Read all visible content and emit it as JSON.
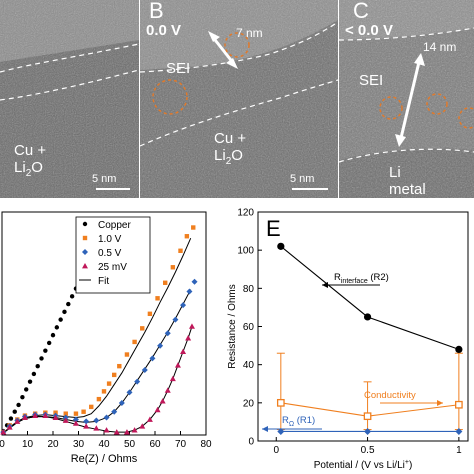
{
  "panels": {
    "a": {
      "labels": [
        "Cu +",
        "Li",
        "2",
        "O"
      ],
      "scale_bar": "5 nm"
    },
    "b": {
      "letter": "B",
      "voltage": "0.0 V",
      "thickness": "7 nm",
      "sei_label": "SEI",
      "labels": [
        "Cu +",
        "Li",
        "2",
        "O"
      ],
      "scale_bar": "5 nm"
    },
    "c": {
      "letter": "C",
      "voltage": "< 0.0 V",
      "thickness": "14 nm",
      "sei_label": "SEI",
      "labels": [
        "Li",
        "metal"
      ]
    }
  },
  "colors": {
    "copper": "#000000",
    "v1": "#f07f1f",
    "v05": "#2f63b9",
    "v25": "#c0185a",
    "fit": "#000000",
    "orange_circle": "#e07a2c"
  },
  "chart_data": [
    {
      "type": "scatter",
      "panel": "D",
      "xlabel": "Re(Z) / Ohms",
      "ylabel": "",
      "xlim": [
        0,
        80
      ],
      "xticks": [
        "0",
        "10",
        "20",
        "30",
        "40",
        "50",
        "60",
        "70",
        "80"
      ],
      "legend": {
        "placement": "top-right",
        "entries": [
          "Copper",
          "1.0 V",
          "0.5 V",
          "25 mV",
          "Fit"
        ]
      },
      "series": [
        {
          "name": "Copper",
          "x": [
            0.5,
            2,
            3.5,
            5,
            6.5,
            8,
            9.5,
            11,
            12.5,
            14,
            15.5,
            17,
            18.5,
            20,
            21.5,
            23,
            24.5,
            26,
            27.5,
            29,
            30.5,
            32,
            33.5,
            35,
            36.5
          ],
          "y": [
            4,
            10,
            17,
            24,
            31,
            39,
            47,
            55,
            63,
            71,
            79,
            87,
            95,
            103,
            111,
            119,
            127,
            135,
            143,
            151,
            159,
            167,
            175,
            183,
            191
          ]
        },
        {
          "name": "1.0 V",
          "x": [
            0.5,
            3,
            6,
            9,
            13,
            17,
            21,
            25,
            29,
            32,
            35,
            38,
            40,
            42,
            44,
            46,
            49,
            52,
            55,
            58,
            61,
            64,
            67,
            70,
            72.5,
            75
          ],
          "y": [
            3,
            10,
            16,
            20,
            22,
            23,
            23,
            22,
            22,
            24,
            29,
            37,
            45,
            53,
            62,
            71,
            83,
            96,
            110,
            125,
            141,
            157,
            173,
            190,
            205,
            214
          ]
        },
        {
          "name": "0.5 V",
          "x": [
            0.5,
            3,
            6,
            9,
            13,
            17,
            21,
            25,
            29,
            33,
            37,
            41,
            44,
            47,
            50,
            53,
            56,
            59,
            62,
            65,
            68,
            71,
            73.5,
            75.5
          ],
          "y": [
            3,
            9,
            15,
            19,
            21,
            21,
            20,
            18,
            16,
            14,
            15,
            18,
            24,
            33,
            44,
            55,
            67,
            79,
            92,
            105,
            119,
            134,
            148,
            158
          ]
        },
        {
          "name": "25 mV",
          "x": [
            0.5,
            3,
            6,
            9,
            13,
            17,
            21,
            25,
            29,
            33,
            37,
            41,
            45,
            49,
            52,
            55,
            58,
            61,
            63,
            65,
            67,
            69,
            71,
            73,
            74.5
          ],
          "y": [
            3,
            8,
            14,
            18,
            20,
            20,
            18,
            15,
            12,
            9,
            7,
            5,
            3,
            3,
            5,
            9,
            16,
            26,
            35,
            46,
            58,
            72,
            86,
            100,
            112
          ]
        }
      ],
      "fit": {
        "name": "Fit",
        "x": [
          0,
          3,
          6,
          9,
          13,
          17,
          21,
          25,
          29,
          32,
          35,
          38,
          41,
          44,
          47,
          50,
          53,
          56,
          59,
          62,
          65,
          68,
          71,
          74
        ],
        "y": [
          1,
          8,
          14,
          18,
          20,
          21,
          20,
          19,
          18,
          19,
          22,
          30,
          40,
          52,
          64,
          78,
          92,
          106,
          121,
          137,
          152,
          168,
          185,
          203
        ]
      },
      "fit_1": {
        "x": [
          0,
          3,
          6,
          9,
          13,
          17,
          21,
          25,
          29,
          33,
          37,
          41,
          44,
          47,
          50,
          53,
          56,
          59,
          62,
          65,
          68,
          71,
          74
        ],
        "y": [
          1,
          7,
          13,
          17,
          19,
          19,
          18,
          16,
          14,
          13,
          14,
          18,
          24,
          33,
          44,
          56,
          68,
          80,
          93,
          106,
          120,
          135,
          150
        ]
      },
      "fit_2": {
        "x": [
          0,
          3,
          6,
          9,
          13,
          17,
          21,
          25,
          29,
          33,
          37,
          41,
          45,
          49,
          52,
          55,
          58,
          61,
          63,
          65,
          67,
          69,
          71,
          73,
          74.5
        ],
        "y": [
          1,
          7,
          13,
          17,
          19,
          19,
          17,
          14,
          11,
          8,
          6,
          4,
          3,
          3,
          5,
          9,
          16,
          26,
          35,
          46,
          58,
          72,
          86,
          100,
          112
        ]
      }
    },
    {
      "type": "line",
      "panel": "E",
      "letter": "E",
      "xlabel": "Potential / (V vs Li/Li",
      "xlabel_sup": "+",
      "xlabel_end": ")",
      "ylabel": "Resistance / Ohms",
      "xlim": [
        -0.1,
        1.05
      ],
      "ylim": [
        0,
        120
      ],
      "xticks": [
        "0",
        "0.5",
        "1"
      ],
      "yticks": [
        "0",
        "20",
        "40",
        "60",
        "80",
        "100",
        "120"
      ],
      "series": [
        {
          "name": "R_interface (R2)",
          "label_main": "R",
          "label_sub": "interface",
          "label_end": " (R2)",
          "x": [
            0.025,
            0.5,
            1.0
          ],
          "y": [
            102,
            65,
            48
          ]
        },
        {
          "name": "Conductivity",
          "label_main": "Conductivity",
          "x": [
            0.025,
            0.5,
            1.0
          ],
          "y": [
            20,
            13,
            19
          ],
          "err_low": [
            6,
            6,
            6
          ],
          "err_high": [
            46,
            31,
            46
          ]
        },
        {
          "name": "R_Ω (R1)",
          "label_main": "R",
          "label_sub": "Ω",
          "label_end": " (R1)",
          "x": [
            0.025,
            0.5,
            1.0
          ],
          "y": [
            5,
            5,
            5
          ]
        }
      ]
    }
  ]
}
